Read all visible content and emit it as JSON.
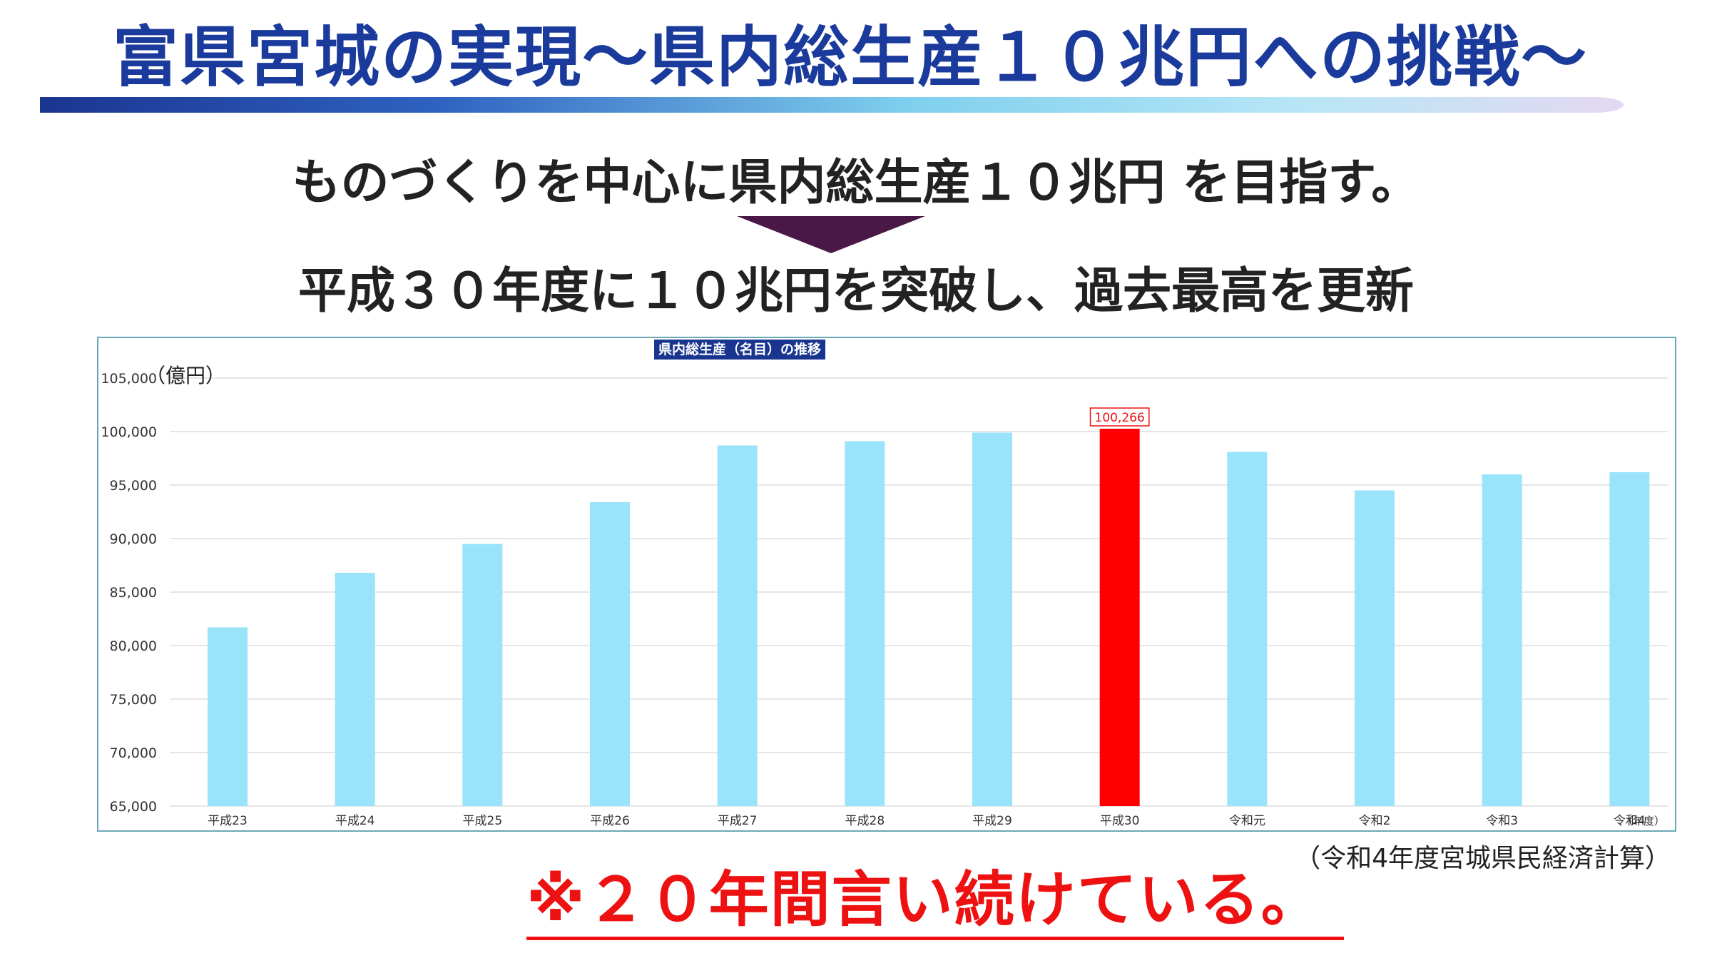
{
  "header": {
    "title": "富県宮城の実現～県内総生産１０兆円への挑戦～",
    "subtitle1": "ものづくりを中心に県内総生産１０兆円 を目指す。",
    "subtitle2": "平成３０年度に１０兆円を突破し、過去最高を更新"
  },
  "source": "（令和4年度宮城県民経済計算）",
  "note": "※２０年間言い続けている。",
  "colors": {
    "title": "#1a3a9c",
    "bar": "#99e3fb",
    "highlight": "#ff0000",
    "arrow": "#4a1846",
    "chart_title_bg": "#1a3590",
    "note": "#ee1111"
  },
  "chart_data": {
    "type": "bar",
    "title": "県内総生産（名目）の推移",
    "ylabel": "（億円）",
    "xlabel": "（年度）",
    "categories": [
      "平成23",
      "平成24",
      "平成25",
      "平成26",
      "平成27",
      "平成28",
      "平成29",
      "平成30",
      "令和元",
      "令和2",
      "令和3",
      "令和4"
    ],
    "values": [
      81700,
      86800,
      89500,
      93400,
      98700,
      99100,
      99900,
      100266,
      98100,
      94500,
      96000,
      96200
    ],
    "highlight_index": 7,
    "data_label": "100,266",
    "ylim": [
      65000,
      105000
    ],
    "yticks": [
      "65,000",
      "70,000",
      "75,000",
      "80,000",
      "85,000",
      "90,000",
      "95,000",
      "100,000",
      "105,000"
    ],
    "grid": true
  }
}
